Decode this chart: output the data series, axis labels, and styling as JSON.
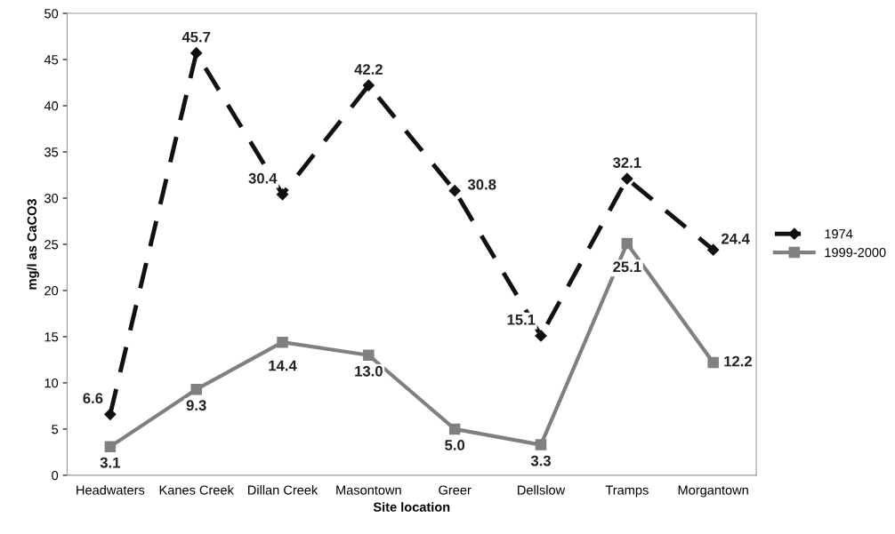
{
  "chart_data": {
    "type": "line",
    "xlabel": "Site location",
    "ylabel": "mg/l as CaCO3",
    "categories": [
      "Headwaters",
      "Kanes Creek",
      "Dillan Creek",
      "Masontown",
      "Greer",
      "Dellslow",
      "Tramps",
      "Morgantown"
    ],
    "series": [
      {
        "name": "1974",
        "color": "#111111",
        "marker": "diamond",
        "line_style": "dashed",
        "values": [
          6.6,
          45.7,
          30.4,
          42.2,
          30.8,
          15.1,
          32.1,
          24.4
        ],
        "value_labels": [
          "6.6",
          "45.7",
          "30.4",
          "42.2",
          "30.8",
          "15.1",
          "32.1",
          "24.4"
        ]
      },
      {
        "name": "1999-2000",
        "color": "#808080",
        "marker": "square",
        "line_style": "solid",
        "values": [
          3.1,
          9.3,
          14.4,
          13.0,
          5.0,
          3.3,
          25.1,
          12.2
        ],
        "value_labels": [
          "3.1",
          "9.3",
          "14.4",
          "13.0",
          "5.0",
          "3.3",
          "25.1",
          "12.2"
        ]
      }
    ],
    "ylim": [
      0,
      50
    ],
    "yticks": [
      0,
      5,
      10,
      15,
      20,
      25,
      30,
      35,
      40,
      45,
      50
    ],
    "legend": "right"
  }
}
